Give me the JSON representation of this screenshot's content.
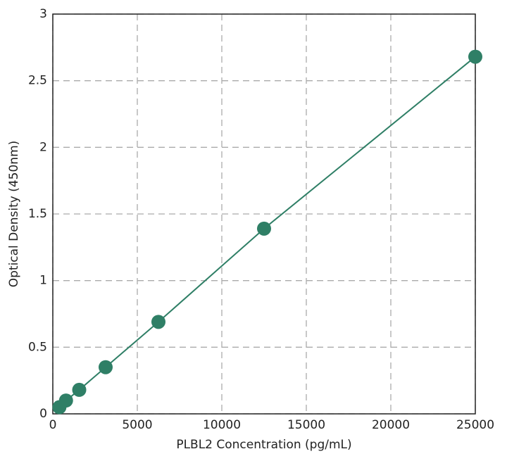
{
  "chart_data": {
    "type": "scatter",
    "x_label": "PLBL2 Concentration (pg/mL)",
    "y_label": "Optical Density (450nm)",
    "x": [
      390,
      781,
      1563,
      3125,
      6250,
      12500,
      25000
    ],
    "values": [
      0.05,
      0.1,
      0.18,
      0.35,
      0.69,
      1.39,
      2.68
    ],
    "color": "#2f7f66",
    "connect": true,
    "xlim": [
      0,
      25000
    ],
    "xticks": [
      0,
      5000,
      10000,
      15000,
      20000,
      25000
    ],
    "ylim": [
      0,
      3
    ],
    "yticks": [
      0,
      0.5,
      1,
      1.5,
      2,
      2.5,
      3
    ],
    "grid": true
  }
}
